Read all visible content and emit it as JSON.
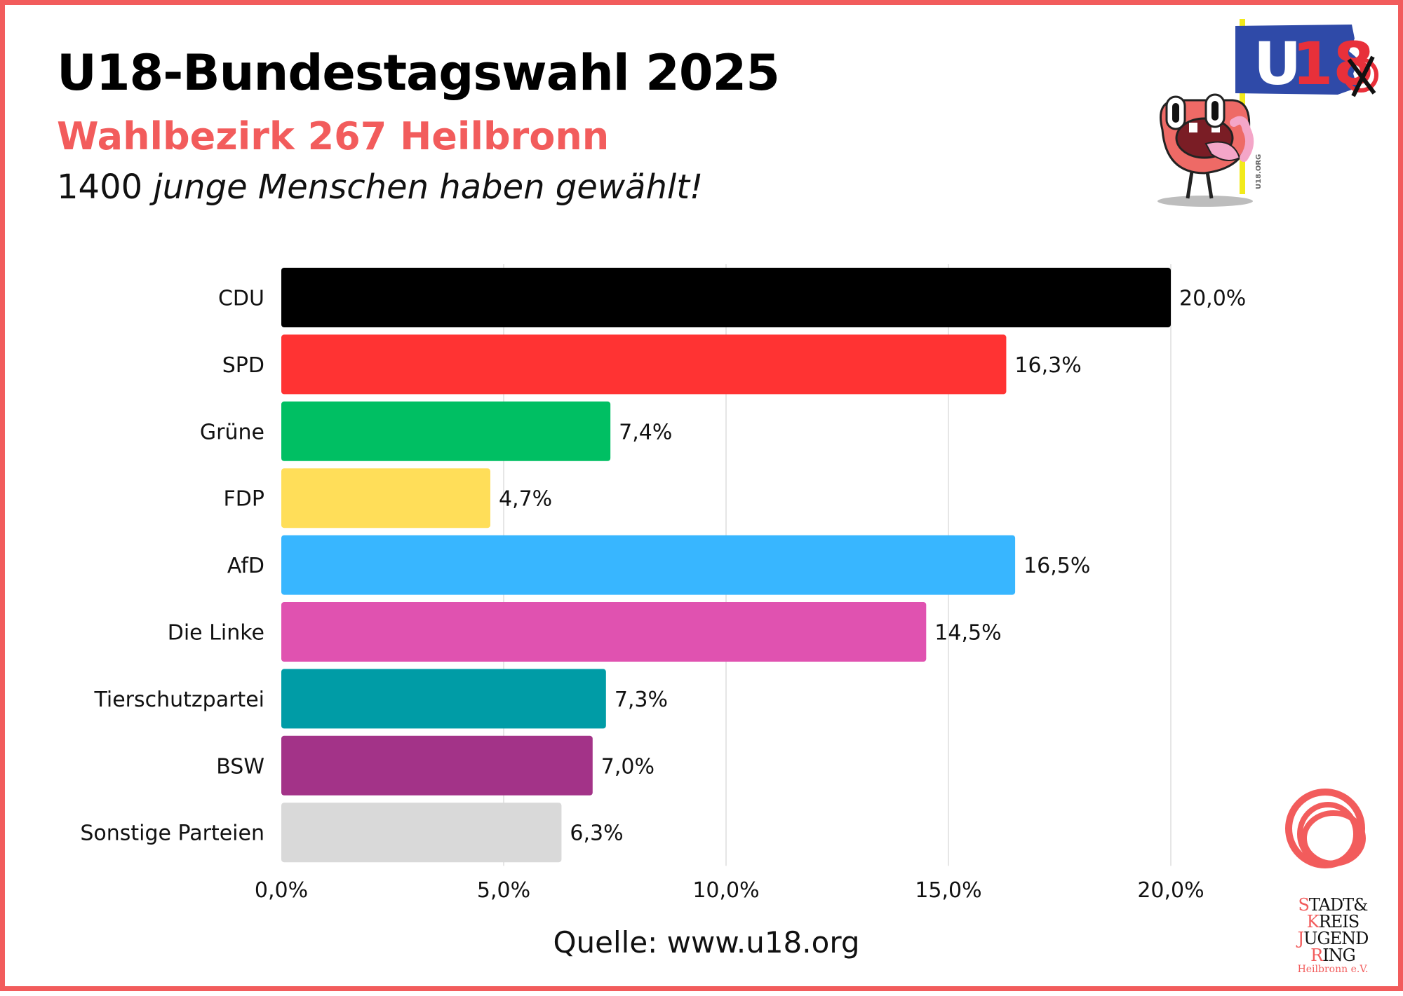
{
  "header": {
    "title": "U18-Bundestagswahl 2025",
    "subtitle": "Wahlbezirk 267 Heilbronn",
    "count": "1400",
    "tagline_rest": "junge Menschen haben gewählt!"
  },
  "chart_data": {
    "type": "bar",
    "orientation": "horizontal",
    "categories": [
      "CDU",
      "SPD",
      "Grüne",
      "FDP",
      "AfD",
      "Die Linke",
      "Tierschutzpartei",
      "BSW",
      "Sonstige Parteien"
    ],
    "values": [
      20.0,
      16.3,
      7.4,
      4.7,
      16.5,
      14.5,
      7.3,
      7.0,
      6.3
    ],
    "value_labels": [
      "20,0%",
      "16,3%",
      "7,4%",
      "4,7%",
      "16,5%",
      "14,5%",
      "7,3%",
      "7,0%",
      "6,3%"
    ],
    "colors": [
      "#000000",
      "#ff3333",
      "#00bf63",
      "#ffde59",
      "#38b6ff",
      "#e052b0",
      "#009ca6",
      "#a33388",
      "#d9d9d9"
    ],
    "xlim": [
      0,
      20
    ],
    "xticks": [
      0,
      5,
      10,
      15,
      20
    ],
    "xtick_labels": [
      "0,0%",
      "5,0%",
      "10,0%",
      "15,0%",
      "20,0%"
    ],
    "grid": "vertical",
    "legend": "none"
  },
  "footer": {
    "source": "Quelle: www.u18.org"
  },
  "logos": {
    "u18_flag_text": "U18",
    "u18_pole_text": "U18.ORG",
    "sjr_line1_initial": "S",
    "sjr_line1_rest": "TADT&",
    "sjr_line2_initial": "K",
    "sjr_line2_rest": "REIS",
    "sjr_line3_initial": "J",
    "sjr_line3_rest": "UGEND",
    "sjr_line4_initial": "R",
    "sjr_line4_rest": "ING",
    "sjr_sub": "Heilbronn e.V."
  },
  "colors": {
    "accent": "#f25c5c",
    "flag_blue": "#2f4aa8",
    "flag_red": "#e8303a",
    "pole_yellow": "#f2ea1b",
    "mascot_red": "#ee6a66",
    "mascot_pink": "#f4a6c8",
    "grid": "#dddddd"
  }
}
